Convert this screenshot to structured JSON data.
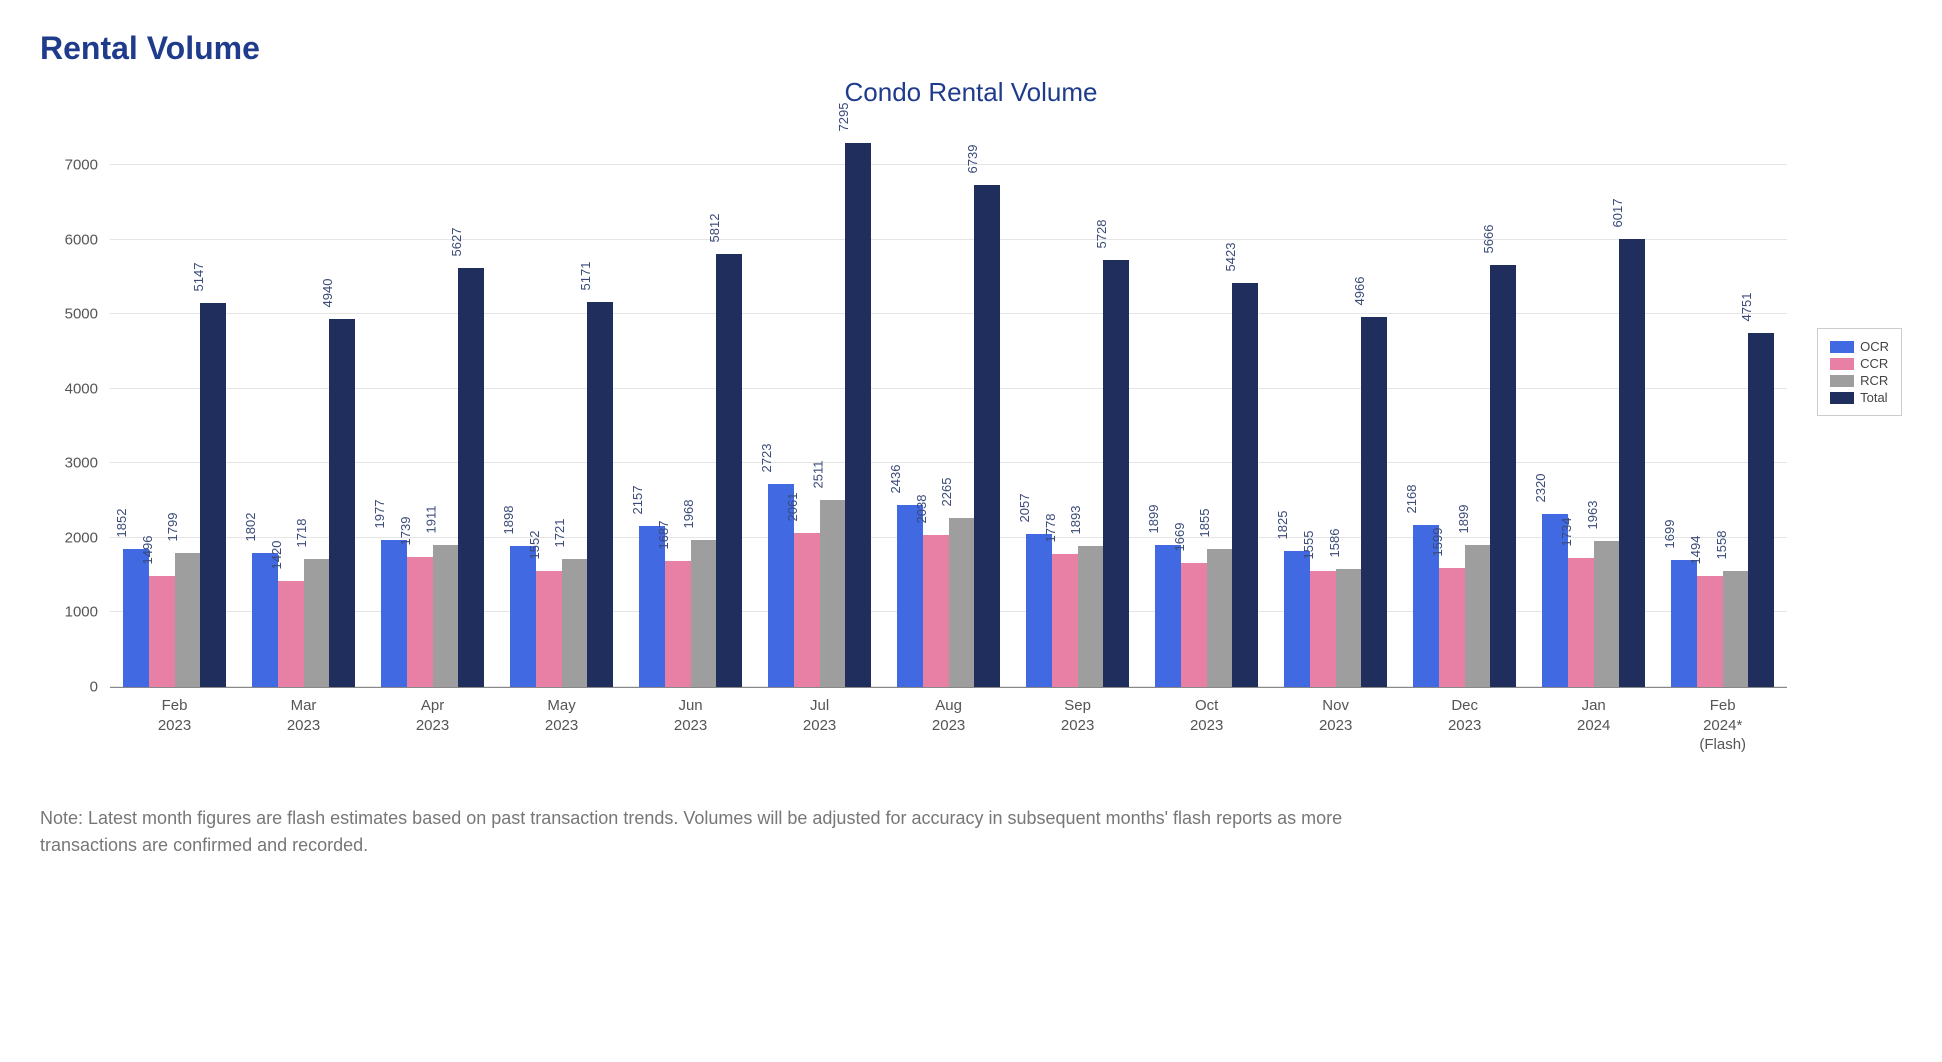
{
  "page_title": "Rental Volume",
  "page_title_color": "#1f3b8c",
  "chart": {
    "type": "bar",
    "title": "Condo Rental Volume",
    "title_color": "#1f3b8c",
    "background_color": "#ffffff",
    "grid_color": "#e5e5e5",
    "axis_font_color": "#555555",
    "bar_label_color": "#3a4a78",
    "bar_label_fontsize": 13,
    "ylim": [
      0,
      7500
    ],
    "yticks": [
      0,
      1000,
      2000,
      3000,
      4000,
      5000,
      6000,
      7000
    ],
    "categories": [
      "Feb\n2023",
      "Mar\n2023",
      "Apr\n2023",
      "May\n2023",
      "Jun\n2023",
      "Jul\n2023",
      "Aug\n2023",
      "Sep\n2023",
      "Oct\n2023",
      "Nov\n2023",
      "Dec\n2023",
      "Jan\n2024",
      "Feb\n2024*\n(Flash)"
    ],
    "series": [
      {
        "name": "OCR",
        "color": "#4169e1",
        "values": [
          1852,
          1802,
          1977,
          1898,
          2157,
          2723,
          2436,
          2057,
          1899,
          1825,
          2168,
          2320,
          1699
        ]
      },
      {
        "name": "CCR",
        "color": "#e87fa4",
        "values": [
          1496,
          1420,
          1739,
          1552,
          1687,
          2061,
          2038,
          1778,
          1669,
          1555,
          1599,
          1734,
          1494
        ]
      },
      {
        "name": "RCR",
        "color": "#9e9e9e",
        "values": [
          1799,
          1718,
          1911,
          1721,
          1968,
          2511,
          2265,
          1893,
          1855,
          1586,
          1899,
          1963,
          1558
        ]
      },
      {
        "name": "Total",
        "color": "#1f2e5c",
        "values": [
          5147,
          4940,
          5627,
          5171,
          5812,
          7295,
          6739,
          5728,
          5423,
          4966,
          5666,
          6017,
          4751
        ]
      }
    ],
    "bar_width_pct": 22,
    "legend_border_color": "#cccccc"
  },
  "note": "Note: Latest month figures are flash estimates based on past transaction trends. Volumes will be adjusted for accuracy in subsequent months' flash reports as more transactions are confirmed and recorded.",
  "note_color": "#777777"
}
